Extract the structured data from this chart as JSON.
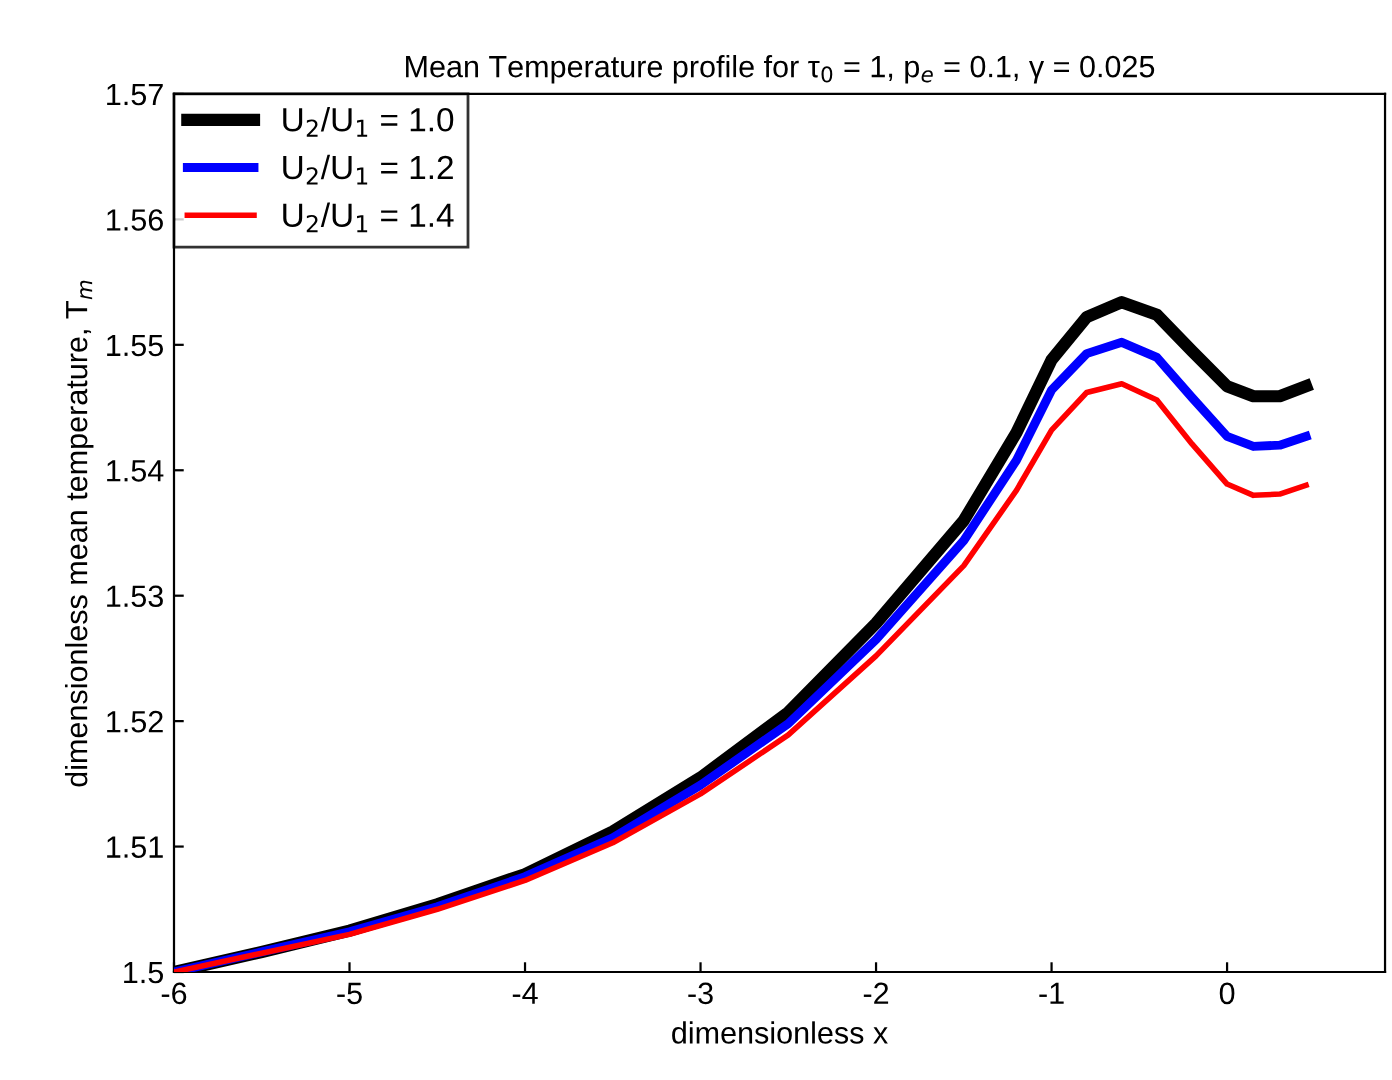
{
  "chart_data": {
    "type": "line",
    "title": "Mean Temperature profile for τ$_{0}$ = 1, p$_{e}$ = 0.1, γ = 0.025",
    "xlabel": "dimensionless x",
    "ylabel": "dimensionless mean temperature, T$_{m}$",
    "x": [
      -6,
      -5.5,
      -5,
      -4.5,
      -4,
      -3.5,
      -3,
      -2.5,
      -2,
      -1.5,
      -1.2,
      -1,
      -0.8,
      -0.6,
      -0.4,
      -0.2,
      0,
      0.15,
      0.3,
      0.45
    ],
    "series": [
      {
        "name": "U$_{2}$/U$_{1}$ = 1.0",
        "color": "#000000",
        "values": [
          1.5,
          1.5016,
          1.5033,
          1.5054,
          1.5078,
          1.5112,
          1.5155,
          1.5207,
          1.5278,
          1.536,
          1.543,
          1.5488,
          1.5522,
          1.5534,
          1.5524,
          1.5495,
          1.5467,
          1.5459,
          1.5459,
          1.5467
        ]
      },
      {
        "name": "U$_{2}$/U$_{1}$ = 1.2",
        "color": "#0000ff",
        "values": [
          1.5,
          1.5016,
          1.5032,
          1.5052,
          1.5076,
          1.5107,
          1.5149,
          1.5198,
          1.5265,
          1.5344,
          1.5408,
          1.5464,
          1.5493,
          1.5502,
          1.549,
          1.5458,
          1.5427,
          1.5419,
          1.542,
          1.5427
        ]
      },
      {
        "name": "U$_{2}$/U$_{1}$ = 1.4",
        "color": "#ff0000",
        "values": [
          1.5,
          1.5015,
          1.503,
          1.505,
          1.5073,
          1.5103,
          1.5142,
          1.5189,
          1.5252,
          1.5324,
          1.5384,
          1.5432,
          1.5462,
          1.5469,
          1.5456,
          1.5421,
          1.5389,
          1.538,
          1.5381,
          1.5388
        ]
      }
    ],
    "xlim": [
      -6,
      0.9
    ],
    "xticks": [
      -6,
      -5,
      -4,
      -3,
      -2,
      -1,
      0
    ],
    "ylim": [
      1.5,
      1.57
    ],
    "yticks": [
      {
        "value": 1.5,
        "label": "1.5"
      },
      1.51,
      1.52,
      1.53,
      1.54,
      1.55,
      1.56,
      1.57
    ],
    "grid": false,
    "legend": "top left",
    "marker": "none",
    "line_style": "solid"
  }
}
